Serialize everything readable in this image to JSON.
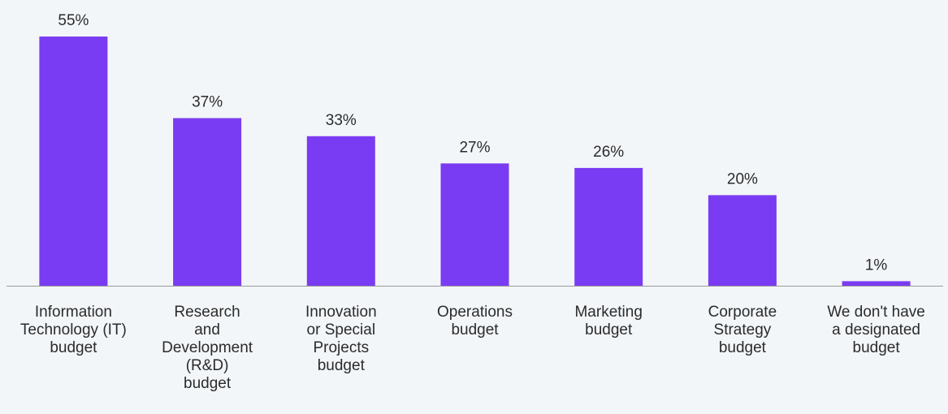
{
  "chart_data": {
    "type": "bar",
    "categories": [
      "Information Technology (IT) budget",
      "Research and Development (R&D) budget",
      "Innovation or Special Projects budget",
      "Operations budget",
      "Marketing budget",
      "Corporate Strategy budget",
      "We don't have a designated budget"
    ],
    "category_lines": [
      [
        "Information",
        "Technology (IT)",
        "budget"
      ],
      [
        "Research",
        "and",
        "Development",
        "(R&D)",
        "budget"
      ],
      [
        "Innovation",
        "or Special",
        "Projects",
        "budget"
      ],
      [
        "Operations",
        "budget"
      ],
      [
        "Marketing",
        "budget"
      ],
      [
        "Corporate",
        "Strategy",
        "budget"
      ],
      [
        "We don't have",
        "a designated",
        "budget"
      ]
    ],
    "values": [
      55,
      37,
      33,
      27,
      26,
      20,
      1
    ],
    "value_labels": [
      "55%",
      "37%",
      "33%",
      "27%",
      "26%",
      "20%",
      "1%"
    ],
    "unit": "%",
    "title": "",
    "xlabel": "",
    "ylabel": "",
    "ylim": [
      0,
      55
    ],
    "grid": false,
    "legend": "none",
    "bar_color": "#7a3cf2",
    "axis_color": "#9a9a9a",
    "text_color": "#2b2b2b",
    "background": "#f3f6f9"
  }
}
